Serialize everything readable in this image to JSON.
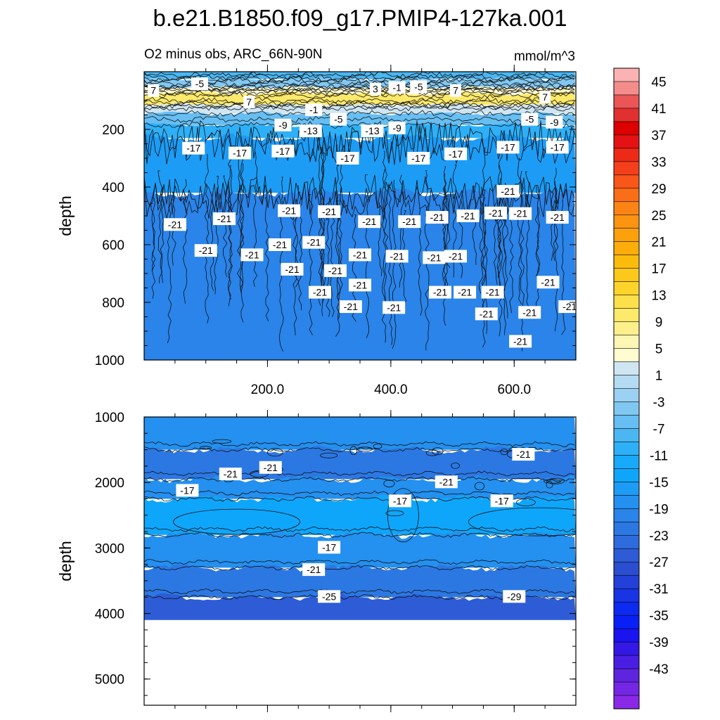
{
  "chart_data": [
    {
      "type": "heatmap",
      "panel": "top",
      "title": "b.e21.B1850.f09_g17.PMIP4-127ka.001",
      "subtitle_left": "O2 minus obs, ARC_66N-90N",
      "subtitle_right": "mmol/m^3",
      "ylabel": "depth",
      "xlim": [
        0,
        700
      ],
      "ylim": [
        1000,
        0
      ],
      "xticks": [
        200,
        400,
        600
      ],
      "xtick_labels": [
        "200.0",
        "400.0",
        "600.0"
      ],
      "yticks": [
        200,
        400,
        600,
        800,
        1000
      ],
      "ytick_labels": [
        "200",
        "400",
        "600",
        "800",
        "1000"
      ],
      "bands": [
        {
          "depth_top": 0,
          "depth_bottom": 25,
          "value": -9
        },
        {
          "depth_top": 25,
          "depth_bottom": 55,
          "value": -5
        },
        {
          "depth_top": 55,
          "depth_bottom": 75,
          "value": 3
        },
        {
          "depth_top": 75,
          "depth_bottom": 115,
          "value": 9
        },
        {
          "depth_top": 115,
          "depth_bottom": 145,
          "value": 1
        },
        {
          "depth_top": 145,
          "depth_bottom": 185,
          "value": -7
        },
        {
          "depth_top": 185,
          "depth_bottom": 230,
          "value": -11
        },
        {
          "depth_top": 230,
          "depth_bottom": 420,
          "value": -17
        },
        {
          "depth_top": 420,
          "depth_bottom": 1000,
          "value": -21
        }
      ],
      "contour_labels": [
        {
          "x": 15,
          "depth": 65,
          "label": "7"
        },
        {
          "x": 90,
          "depth": 42,
          "label": "-5"
        },
        {
          "x": 170,
          "depth": 105,
          "label": "7"
        },
        {
          "x": 375,
          "depth": 60,
          "label": "3"
        },
        {
          "x": 410,
          "depth": 55,
          "label": "-1"
        },
        {
          "x": 445,
          "depth": 52,
          "label": "-5"
        },
        {
          "x": 505,
          "depth": 65,
          "label": "7"
        },
        {
          "x": 650,
          "depth": 88,
          "label": "7"
        },
        {
          "x": 275,
          "depth": 132,
          "label": "-1"
        },
        {
          "x": 315,
          "depth": 165,
          "label": "-5"
        },
        {
          "x": 625,
          "depth": 165,
          "label": "-5"
        },
        {
          "x": 665,
          "depth": 175,
          "label": "-9"
        },
        {
          "x": 225,
          "depth": 185,
          "label": "-9"
        },
        {
          "x": 270,
          "depth": 205,
          "label": "-13"
        },
        {
          "x": 370,
          "depth": 205,
          "label": "-13"
        },
        {
          "x": 410,
          "depth": 195,
          "label": "-9"
        },
        {
          "x": 80,
          "depth": 265,
          "label": "-17"
        },
        {
          "x": 155,
          "depth": 282,
          "label": "-17"
        },
        {
          "x": 225,
          "depth": 275,
          "label": "-17"
        },
        {
          "x": 330,
          "depth": 300,
          "label": "-17"
        },
        {
          "x": 445,
          "depth": 300,
          "label": "-17"
        },
        {
          "x": 505,
          "depth": 285,
          "label": "-17"
        },
        {
          "x": 590,
          "depth": 262,
          "label": "-17"
        },
        {
          "x": 670,
          "depth": 262,
          "label": "-17"
        },
        {
          "x": 590,
          "depth": 415,
          "label": "-21"
        },
        {
          "x": 50,
          "depth": 530,
          "label": "-21"
        },
        {
          "x": 130,
          "depth": 510,
          "label": "-21"
        },
        {
          "x": 235,
          "depth": 482,
          "label": "-21"
        },
        {
          "x": 300,
          "depth": 485,
          "label": "-21"
        },
        {
          "x": 365,
          "depth": 520,
          "label": "-21"
        },
        {
          "x": 430,
          "depth": 520,
          "label": "-21"
        },
        {
          "x": 475,
          "depth": 505,
          "label": "-21"
        },
        {
          "x": 525,
          "depth": 500,
          "label": "-21"
        },
        {
          "x": 570,
          "depth": 490,
          "label": "-21"
        },
        {
          "x": 610,
          "depth": 492,
          "label": "-21"
        },
        {
          "x": 670,
          "depth": 505,
          "label": "-21"
        },
        {
          "x": 100,
          "depth": 620,
          "label": "-21"
        },
        {
          "x": 175,
          "depth": 635,
          "label": "-21"
        },
        {
          "x": 220,
          "depth": 600,
          "label": "-21"
        },
        {
          "x": 275,
          "depth": 592,
          "label": "-21"
        },
        {
          "x": 410,
          "depth": 640,
          "label": "-21"
        },
        {
          "x": 350,
          "depth": 635,
          "label": "-21"
        },
        {
          "x": 470,
          "depth": 645,
          "label": "-21"
        },
        {
          "x": 505,
          "depth": 640,
          "label": "-21"
        },
        {
          "x": 240,
          "depth": 685,
          "label": "-21"
        },
        {
          "x": 310,
          "depth": 690,
          "label": "-21"
        },
        {
          "x": 350,
          "depth": 740,
          "label": "-21"
        },
        {
          "x": 285,
          "depth": 765,
          "label": "-21"
        },
        {
          "x": 335,
          "depth": 815,
          "label": "-21"
        },
        {
          "x": 405,
          "depth": 818,
          "label": "-21"
        },
        {
          "x": 480,
          "depth": 765,
          "label": "-21"
        },
        {
          "x": 520,
          "depth": 765,
          "label": "-21"
        },
        {
          "x": 565,
          "depth": 765,
          "label": "-21"
        },
        {
          "x": 655,
          "depth": 730,
          "label": "-21"
        },
        {
          "x": 555,
          "depth": 840,
          "label": "-21"
        },
        {
          "x": 625,
          "depth": 835,
          "label": "-21"
        },
        {
          "x": 690,
          "depth": 815,
          "label": "-21"
        },
        {
          "x": 610,
          "depth": 935,
          "label": "-21"
        }
      ]
    },
    {
      "type": "heatmap",
      "panel": "bottom",
      "ylabel": "depth",
      "xlim": [
        0,
        700
      ],
      "ylim": [
        5400,
        1000
      ],
      "yticks": [
        1000,
        2000,
        3000,
        4000,
        5000
      ],
      "ytick_labels": [
        "1000",
        "2000",
        "3000",
        "4000",
        "5000"
      ],
      "ocean_bottom_depth": 4100,
      "bands": [
        {
          "depth_top": 1000,
          "depth_bottom": 1500,
          "value": -19
        },
        {
          "depth_top": 1500,
          "depth_bottom": 1950,
          "value": -23
        },
        {
          "depth_top": 1950,
          "depth_bottom": 2250,
          "value": -19
        },
        {
          "depth_top": 2250,
          "depth_bottom": 2800,
          "value": -15
        },
        {
          "depth_top": 2800,
          "depth_bottom": 3300,
          "value": -19
        },
        {
          "depth_top": 3300,
          "depth_bottom": 3750,
          "value": -23
        },
        {
          "depth_top": 3750,
          "depth_bottom": 4100,
          "value": -27
        }
      ],
      "contour_labels": [
        {
          "x": 140,
          "depth": 1870,
          "label": "-21"
        },
        {
          "x": 205,
          "depth": 1770,
          "label": "-21"
        },
        {
          "x": 70,
          "depth": 2120,
          "label": "-17"
        },
        {
          "x": 490,
          "depth": 1990,
          "label": "-21"
        },
        {
          "x": 615,
          "depth": 1570,
          "label": "-21"
        },
        {
          "x": 415,
          "depth": 2280,
          "label": "-17"
        },
        {
          "x": 580,
          "depth": 2280,
          "label": "-17"
        },
        {
          "x": 300,
          "depth": 2990,
          "label": "-17"
        },
        {
          "x": 275,
          "depth": 3330,
          "label": "-21"
        },
        {
          "x": 300,
          "depth": 3740,
          "label": "-25"
        },
        {
          "x": 600,
          "depth": 3740,
          "label": "-29"
        }
      ]
    }
  ],
  "colorbar": {
    "labels": [
      "45",
      "41",
      "37",
      "33",
      "29",
      "25",
      "21",
      "17",
      "13",
      "9",
      "5",
      "1",
      "-3",
      "-7",
      "-11",
      "-15",
      "-19",
      "-23",
      "-27",
      "-31",
      "-35",
      "-39",
      "-43"
    ],
    "colors": [
      "#fbb2b2",
      "#f58c8c",
      "#ea5555",
      "#e23030",
      "#dc0000",
      "#e41212",
      "#ed2a16",
      "#f4401a",
      "#f9561a",
      "#fb6e18",
      "#fc8414",
      "#fc9410",
      "#fca10c",
      "#fcad0a",
      "#fcbc0c",
      "#fcc81a",
      "#fed42c",
      "#fee04a",
      "#fde96a",
      "#fdf08c",
      "#fdf6b4",
      "#fffdd0",
      "#cfe5f2",
      "#b5dbf2",
      "#9bd1f2",
      "#80c8f2",
      "#66bef2",
      "#4ab6f2",
      "#2eb0f8",
      "#16aaf8",
      "#0ea6fb",
      "#1d9cf6",
      "#2490ef",
      "#2a84e9",
      "#2c78e3",
      "#2e6cdd",
      "#2d5cd6",
      "#2a4ecf",
      "#2340d8",
      "#1834e4",
      "#0d2af0",
      "#0820f6",
      "#1a14f0",
      "#3418e6",
      "#4a1ee2",
      "#5e24de",
      "#7426e4",
      "#8a28e8"
    ]
  }
}
